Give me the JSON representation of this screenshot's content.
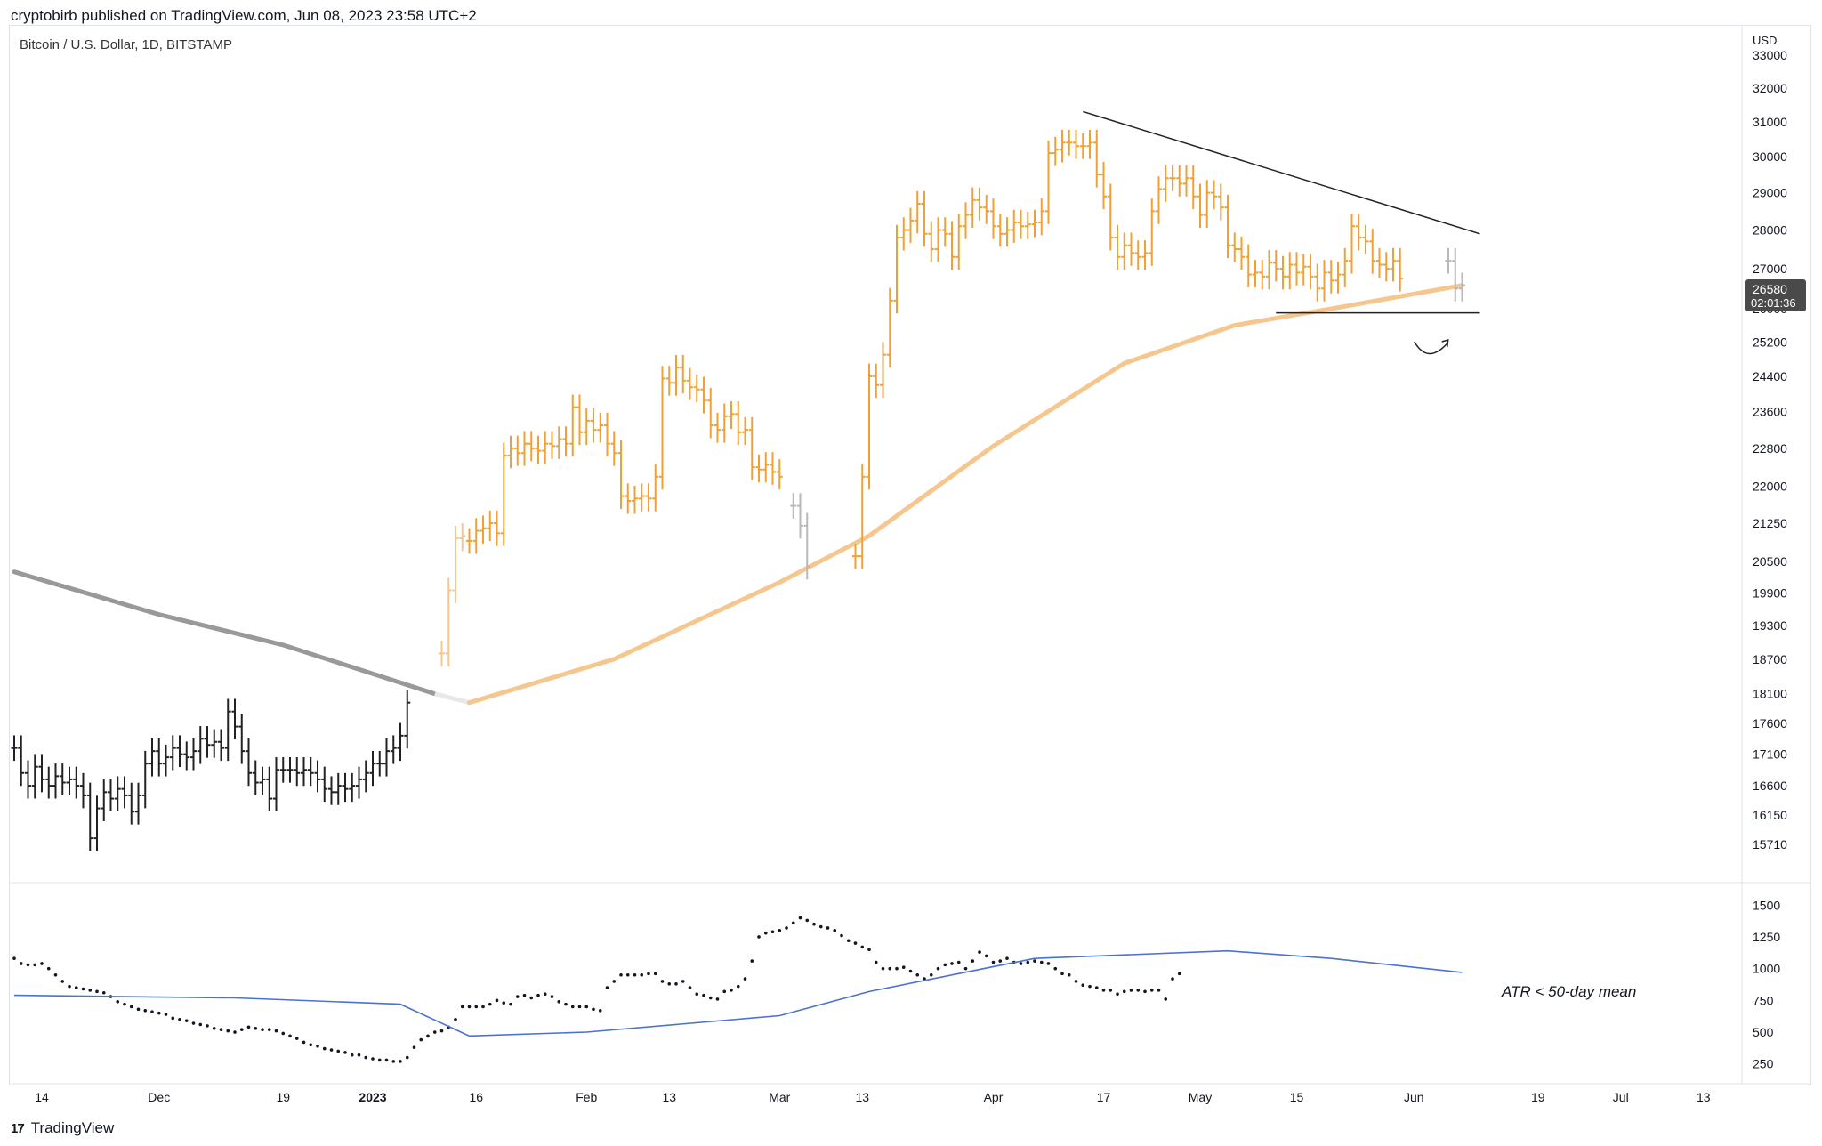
{
  "header": {
    "published": "cryptobirb published on TradingView.com, Jun 08, 2023 23:58 UTC+2"
  },
  "symbol": "Bitcoin / U.S. Dollar, 1D, BITSTAMP",
  "footer": {
    "brand": "TradingView",
    "logo_glyph": "17"
  },
  "colors": {
    "orange": "#f0a035",
    "light_orange": "#f5c78e",
    "black": "#222222",
    "gray": "#999999",
    "blue": "#4a72d0"
  },
  "price_axis": {
    "currency": "USD",
    "ticks": [
      "33000",
      "32000",
      "31000",
      "30000",
      "29000",
      "28000",
      "27000",
      "26000",
      "25200",
      "24400",
      "23600",
      "22800",
      "22000",
      "21250",
      "20500",
      "19900",
      "19300",
      "18700",
      "18100",
      "17600",
      "17100",
      "16600",
      "16150",
      "15710"
    ],
    "last_price": "26580",
    "countdown": "02:01:36"
  },
  "atr_axis": {
    "ticks": [
      "1500",
      "1250",
      "1000",
      "750",
      "500",
      "250"
    ]
  },
  "time_axis": {
    "ticks": [
      "14",
      "Dec",
      "19",
      "2023",
      "16",
      "Feb",
      "13",
      "Mar",
      "13",
      "Apr",
      "17",
      "May",
      "15",
      "Jun",
      "19",
      "Jul",
      "13"
    ]
  },
  "annotation": "ATR < 50-day mean",
  "chart_data": {
    "type": "line",
    "title": "Bitcoin / U.S. Dollar, 1D, BITSTAMP",
    "xlabel": "",
    "ylabel": "USD",
    "ylim": [
      15500,
      33200
    ],
    "price_closes_by_segment": [
      {
        "name": "below MA (black)",
        "start": "Nov 10, 2022",
        "closes": [
          17200,
          16800,
          16600,
          16900,
          16700,
          16600,
          16750,
          16650,
          16700,
          16600,
          16450,
          15800,
          16250,
          16500,
          16400,
          16550,
          16450,
          16200,
          16450,
          16950,
          17150,
          16950,
          17050,
          17200,
          17100,
          17050,
          17150,
          17350,
          17250,
          17300,
          17200,
          17800,
          17550,
          17150,
          16800,
          16650,
          16700,
          16400,
          16850,
          16850,
          16850,
          16800,
          16850,
          16800,
          16700,
          16550,
          16500,
          16600,
          16550,
          16600,
          16700,
          16800,
          16950,
          16950,
          17150,
          17200,
          17400,
          17950
        ]
      },
      {
        "name": "crossing (light)",
        "start": "Jan 11, 2023",
        "closes": [
          18800,
          19950,
          20950,
          21000
        ]
      },
      {
        "name": "above MA (orange)",
        "start": "Jan 15, 2023",
        "closes": [
          20900,
          21100,
          21150,
          21250,
          21050,
          22650,
          22800,
          22700,
          22900,
          22800,
          22750,
          22900,
          22850,
          23000,
          22900,
          23700,
          23150,
          23400,
          23200,
          23300,
          22900,
          22700,
          21800,
          21700,
          21750,
          21800,
          21750,
          22200,
          24350,
          24250,
          24600,
          24300,
          24150,
          24100,
          23850,
          23300,
          23200,
          23500,
          23550,
          23150,
          23200,
          22400,
          22350,
          22450,
          22300,
          22200
        ]
      },
      {
        "name": "dip to MA (gray)",
        "start": "Mar 3, 2023",
        "closes": [
          21600,
          21200,
          20400
        ]
      },
      {
        "name": "above MA (orange)",
        "start": "Mar 12, 2023",
        "closes": [
          20600,
          22200,
          24400,
          24200,
          24900,
          26200,
          27800,
          28000,
          28250,
          28700,
          27900,
          27500,
          28000,
          27900,
          27300,
          28100,
          28400,
          28800,
          28600,
          28500,
          28100,
          27900,
          28000,
          28200,
          28100,
          28150,
          28200,
          28500,
          30100,
          30200,
          30400,
          30400,
          30300,
          30300,
          30400,
          29500,
          28900,
          27800,
          27300,
          27600,
          27400,
          27300,
          27400,
          28500,
          29100,
          29400,
          29400,
          29250,
          29400,
          28900,
          28400,
          29000,
          28900,
          28600,
          27600,
          27500,
          27300,
          26850,
          26900,
          26800,
          27150,
          27000,
          26800,
          27100,
          26900,
          27050,
          26800,
          26500,
          26900,
          26700,
          26850,
          27200,
          28100,
          27800,
          27700,
          27200,
          27100,
          27000,
          27200,
          26750
        ]
      },
      {
        "name": "last bars (gray)",
        "start": "Jun 6, 2023",
        "closes": [
          27200,
          26500,
          26580
        ]
      }
    ],
    "moving_average": {
      "name": "",
      "points": [
        [
          "Nov 10",
          20300
        ],
        [
          "Dec 1",
          19500
        ],
        [
          "Dec 19",
          18950
        ],
        [
          "Jan 10",
          18100
        ],
        [
          "Jan 15",
          17950
        ],
        [
          "Feb 5",
          18700
        ],
        [
          "Mar 1",
          20100
        ],
        [
          "Mar 14",
          21000
        ],
        [
          "Apr 1",
          22850
        ],
        [
          "Apr 20",
          24700
        ],
        [
          "May 6",
          25600
        ],
        [
          "May 20",
          26000
        ],
        [
          "Jun 8",
          26580
        ]
      ]
    },
    "resistance_line": {
      "from": [
        "Apr 14",
        31300
      ],
      "to": [
        "Jun 8",
        27900
      ]
    },
    "support_line": {
      "from": [
        "May 12",
        25900
      ],
      "to": [
        "Jun 8",
        25900
      ]
    },
    "atr": {
      "ylim": [
        150,
        1600
      ],
      "values": [
        1080,
        1040,
        1030,
        1030,
        1040,
        1000,
        950,
        900,
        860,
        850,
        840,
        830,
        820,
        810,
        780,
        740,
        720,
        700,
        680,
        670,
        660,
        650,
        640,
        610,
        600,
        590,
        570,
        560,
        550,
        530,
        520,
        510,
        500,
        520,
        540,
        530,
        520,
        520,
        510,
        490,
        470,
        450,
        420,
        400,
        390,
        370,
        360,
        350,
        340,
        320,
        320,
        300,
        290,
        280,
        280,
        270,
        270,
        300,
        380,
        440,
        470,
        500,
        510,
        540,
        600,
        700,
        700,
        700,
        700,
        720,
        750,
        730,
        720,
        780,
        790,
        770,
        790,
        800,
        780,
        740,
        720,
        700,
        700,
        700,
        680,
        670,
        850,
        900,
        950,
        950,
        950,
        950,
        960,
        960,
        900,
        880,
        880,
        900,
        850,
        800,
        790,
        770,
        760,
        820,
        830,
        860,
        920,
        1060,
        1250,
        1280,
        1290,
        1300,
        1320,
        1360,
        1400,
        1380,
        1350,
        1330,
        1320,
        1300,
        1260,
        1220,
        1200,
        1170,
        1150,
        1050,
        1000,
        1000,
        1000,
        1010,
        980,
        950,
        920,
        950,
        1000,
        1030,
        1040,
        1050,
        1000,
        1060,
        1130,
        1100,
        1050,
        1060,
        1080,
        1050,
        1040,
        1050,
        1060,
        1050,
        1040,
        1000,
        960,
        950,
        900,
        870,
        860,
        850,
        830,
        830,
        800,
        820,
        830,
        830,
        820,
        830,
        830,
        760,
        920,
        960
      ],
      "mean_points": [
        [
          "Nov 10",
          790
        ],
        [
          "Dec 12",
          770
        ],
        [
          "Jan 5",
          720
        ],
        [
          "Jan 15",
          470
        ],
        [
          "Feb 1",
          500
        ],
        [
          "Mar 1",
          630
        ],
        [
          "Mar 14",
          820
        ],
        [
          "Apr 7",
          1080
        ],
        [
          "May 5",
          1140
        ],
        [
          "May 20",
          1080
        ],
        [
          "Jun 8",
          970
        ]
      ]
    }
  }
}
